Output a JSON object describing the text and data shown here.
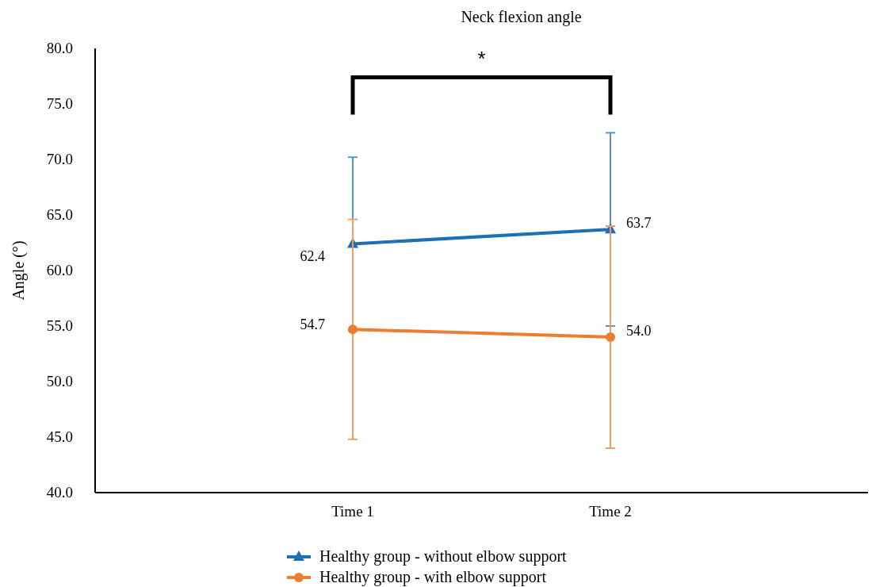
{
  "chart_data": {
    "type": "line",
    "title": "Neck flexion angle",
    "ylabel": "Angle (°)",
    "categories": [
      "Time 1",
      "Time 2"
    ],
    "series": [
      {
        "name": "Healthy group - without elbow support",
        "color": "#1f6fb4",
        "values": [
          62.4,
          63.7
        ],
        "value_labels": [
          "62.4",
          "63.7"
        ],
        "errors": [
          7.8,
          8.7
        ],
        "marker": "triangle"
      },
      {
        "name": "Healthy group - with elbow support",
        "color": "#ed7d31",
        "values": [
          54.7,
          54.0
        ],
        "value_labels": [
          "54.7",
          "54.0"
        ],
        "errors": [
          9.9,
          10.0
        ],
        "marker": "circle"
      }
    ],
    "ylim": [
      40,
      80
    ],
    "yticks": [
      {
        "value": 40,
        "label": "40.0"
      },
      {
        "value": 45,
        "label": "45.0"
      },
      {
        "value": 50,
        "label": "50.0"
      },
      {
        "value": 55,
        "label": "55.0"
      },
      {
        "value": 60,
        "label": "60.0"
      },
      {
        "value": 65,
        "label": "65.0"
      },
      {
        "value": 70,
        "label": "70.0"
      },
      {
        "value": 75,
        "label": "75.0"
      },
      {
        "value": 80,
        "label": "80.0"
      }
    ],
    "grid": false,
    "legend": "bottom",
    "line_style": "solid",
    "annotations": [
      "*"
    ]
  }
}
